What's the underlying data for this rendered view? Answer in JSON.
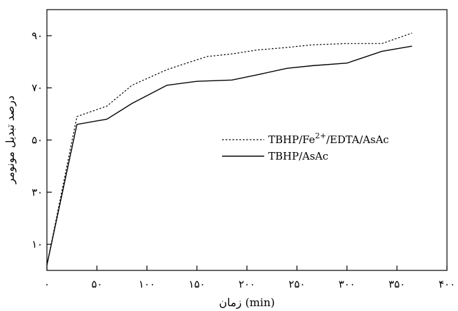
{
  "chart_data": {
    "type": "line",
    "xlabel": "زمان (min)",
    "ylabel": "درصد تبدیل مونومر",
    "xlim": [
      0,
      400
    ],
    "ylim": [
      0,
      100
    ],
    "x_ticks": [
      0,
      50,
      100,
      150,
      200,
      250,
      300,
      350,
      400
    ],
    "x_tick_labels": [
      "۰",
      "۵۰",
      "۱۰۰",
      "۱۵۰",
      "۲۰۰",
      "۲۵۰",
      "۳۰۰",
      "۳۵۰",
      "۴۰۰"
    ],
    "y_ticks": [
      10,
      30,
      50,
      70,
      90
    ],
    "y_tick_labels": [
      "۱۰",
      "۳۰",
      "۵۰",
      "۷۰",
      "۹۰"
    ],
    "grid": false,
    "legend_position": "center-right",
    "series": [
      {
        "name": "TBHP/Fe2+/EDTA/AsAc",
        "name_base": "TBHP/Fe",
        "name_sup": "2+",
        "name_tail": "/EDTA/AsAc",
        "style": "dotted",
        "color": "#000000",
        "x": [
          0,
          30,
          60,
          85,
          120,
          160,
          185,
          210,
          240,
          265,
          300,
          335,
          365
        ],
        "y": [
          2,
          59,
          63,
          71,
          77,
          82,
          83,
          84.5,
          85.5,
          86.5,
          87,
          87,
          91
        ]
      },
      {
        "name": "TBHP/AsAc",
        "style": "solid",
        "color": "#000000",
        "x": [
          0,
          30,
          60,
          85,
          120,
          150,
          185,
          210,
          240,
          265,
          300,
          335,
          365
        ],
        "y": [
          2,
          56,
          58,
          64,
          71,
          72.5,
          73,
          75,
          77.5,
          78.5,
          79.5,
          84,
          86
        ]
      }
    ]
  }
}
